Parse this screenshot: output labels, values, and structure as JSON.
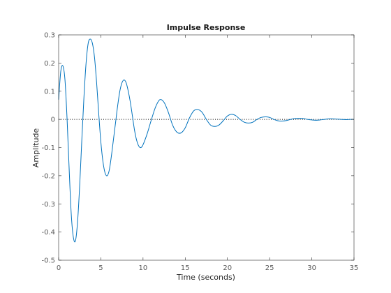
{
  "chart_data": {
    "type": "line",
    "title": "Impulse Response",
    "xlabel": "Time (seconds)",
    "ylabel": "Amplitude",
    "xlim": [
      0,
      35
    ],
    "ylim": [
      -0.5,
      0.3
    ],
    "x_ticks": [
      0,
      5,
      10,
      15,
      20,
      25,
      30,
      35
    ],
    "y_ticks": [
      -0.5,
      -0.4,
      -0.3,
      -0.2,
      -0.1,
      0,
      0.1,
      0.2,
      0.3
    ],
    "x_tick_labels": [
      "0",
      "5",
      "10",
      "15",
      "20",
      "25",
      "30",
      "35"
    ],
    "y_tick_labels": [
      "-0.5",
      "-0.4",
      "-0.3",
      "-0.2",
      "-0.1",
      "0",
      "0.1",
      "0.2",
      "0.3"
    ],
    "grid": false,
    "reference_line": {
      "y": 0,
      "style": "dotted",
      "color": "#000000"
    },
    "series": [
      {
        "color": "#0072bd",
        "x": [
          0,
          0.25,
          0.5,
          0.75,
          1.0,
          1.25,
          1.5,
          1.75,
          2.0,
          2.25,
          2.5,
          2.75,
          3.0,
          3.25,
          3.5,
          3.75,
          4.0,
          4.25,
          4.5,
          4.75,
          5.0,
          5.25,
          5.5,
          5.75,
          6.0,
          6.25,
          6.5,
          6.75,
          7.0,
          7.25,
          7.5,
          7.75,
          8.0,
          8.25,
          8.5,
          8.75,
          9.0,
          9.25,
          9.5,
          9.75,
          10.0,
          10.5,
          11.0,
          11.5,
          12.0,
          12.5,
          13.0,
          13.5,
          14.0,
          14.5,
          15.0,
          15.5,
          16.0,
          16.5,
          17.0,
          17.5,
          18.0,
          18.5,
          19.0,
          19.5,
          20.0,
          20.5,
          21.0,
          21.5,
          22.0,
          22.5,
          23.0,
          23.5,
          24.0,
          24.5,
          25.0,
          25.5,
          26.0,
          26.5,
          27.0,
          27.5,
          28.0,
          28.5,
          29.0,
          29.5,
          30.0,
          30.5,
          31.0,
          31.5,
          32.0,
          32.5,
          33.0,
          33.5,
          34.0,
          34.5,
          35.0
        ],
        "y": [
          0.07,
          0.17,
          0.19,
          0.14,
          0.0,
          -0.18,
          -0.34,
          -0.42,
          -0.43,
          -0.36,
          -0.23,
          -0.07,
          0.08,
          0.2,
          0.27,
          0.285,
          0.27,
          0.22,
          0.13,
          0.02,
          -0.08,
          -0.15,
          -0.19,
          -0.2,
          -0.18,
          -0.13,
          -0.07,
          -0.01,
          0.05,
          0.1,
          0.13,
          0.14,
          0.13,
          0.1,
          0.06,
          0.01,
          -0.04,
          -0.075,
          -0.095,
          -0.1,
          -0.09,
          -0.05,
          0.0,
          0.045,
          0.07,
          0.06,
          0.025,
          -0.02,
          -0.045,
          -0.048,
          -0.03,
          0.005,
          0.03,
          0.035,
          0.025,
          0.0,
          -0.02,
          -0.025,
          -0.02,
          -0.005,
          0.012,
          0.018,
          0.013,
          0.0,
          -0.01,
          -0.013,
          -0.01,
          0.0,
          0.007,
          0.009,
          0.007,
          0.0,
          -0.005,
          -0.006,
          -0.004,
          0.0,
          0.003,
          0.004,
          0.003,
          0.0,
          -0.002,
          -0.003,
          -0.002,
          0.0,
          0.002,
          0.002,
          0.001,
          0.0,
          -0.001,
          0.0,
          0.0
        ]
      }
    ]
  }
}
